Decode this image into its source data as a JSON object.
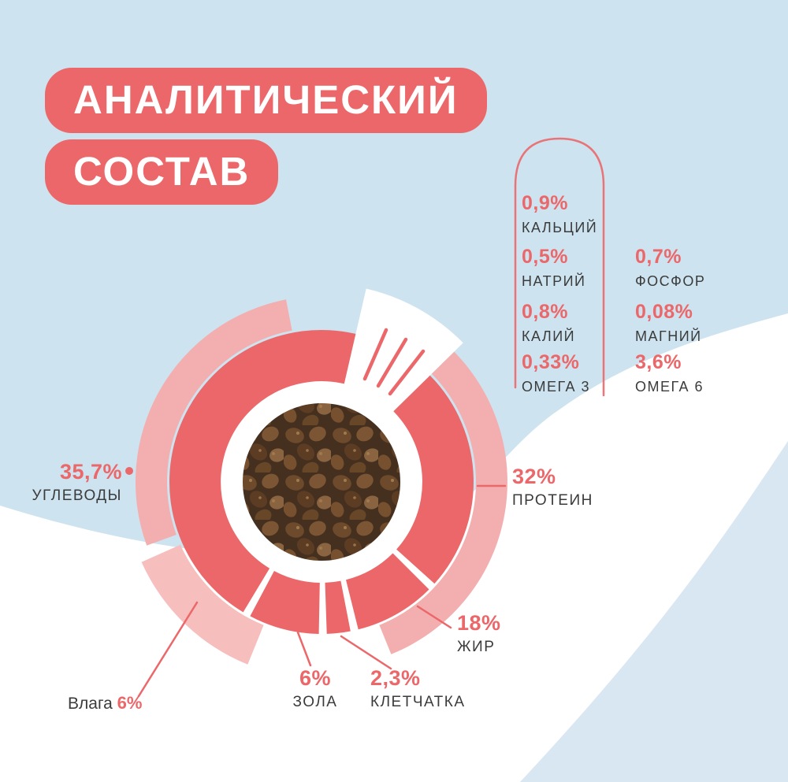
{
  "title": {
    "line1": "АНАЛИТИЧЕСКИЙ",
    "line2": "СОСТАВ"
  },
  "colors": {
    "coral": "#ec6769",
    "pale_pink": "#f3afaf",
    "wedge_pink": "#f7bebe",
    "background_blue": "#cde3ef",
    "wave_white": "#ffffff",
    "bottom_right_blue": "#d8e7f1",
    "text_dark": "#3b3b3b",
    "title_text_white": "#ffffff"
  },
  "chart_data": {
    "type": "pie",
    "subtype": "donut",
    "title": "АНАЛИТИЧЕСКИЙ СОСТАВ",
    "unit": "percent",
    "legend_position": "around",
    "segments": [
      {
        "name": "ПРОТЕИН",
        "value": 32,
        "label": "32%",
        "arc": [
          45.5,
          132
        ],
        "ring": "main"
      },
      {
        "name": "ЖИР",
        "value": 18,
        "label": "18%",
        "arc": [
          135,
          166
        ],
        "ring": "main"
      },
      {
        "name": "КЛЕТЧАТКА",
        "value": 2.3,
        "label": "2,3%",
        "arc": [
          169,
          178
        ],
        "ring": "main"
      },
      {
        "name": "ЗОЛА",
        "value": 6,
        "label": "6%",
        "arc": [
          181,
          208
        ],
        "ring": "main"
      },
      {
        "name": "УГЛЕВОДЫ",
        "value": 35.7,
        "label": "35,7%",
        "arc": [
          211,
          373
        ],
        "ring": "main"
      },
      {
        "name": "Влага",
        "value": 6,
        "label": "6%",
        "arc": [
          202,
          246
        ],
        "ring": "outer"
      }
    ],
    "outer_ring_arcs": [
      [
        45.5,
        158
      ],
      [
        250,
        349
      ]
    ],
    "minerals": {
      "left": [
        {
          "value": "0,9%",
          "label": "КАЛЬЦИЙ"
        },
        {
          "value": "0,5%",
          "label": "НАТРИЙ"
        },
        {
          "value": "0,8%",
          "label": "КАЛИЙ"
        },
        {
          "value": "0,33%",
          "label": "ОМЕГА 3"
        }
      ],
      "right": [
        {
          "value": "0,7%",
          "label": "ФОСФОР"
        },
        {
          "value": "0,08%",
          "label": "МАГНИЙ"
        },
        {
          "value": "3,6%",
          "label": "ОМЕГА 6"
        }
      ]
    }
  }
}
